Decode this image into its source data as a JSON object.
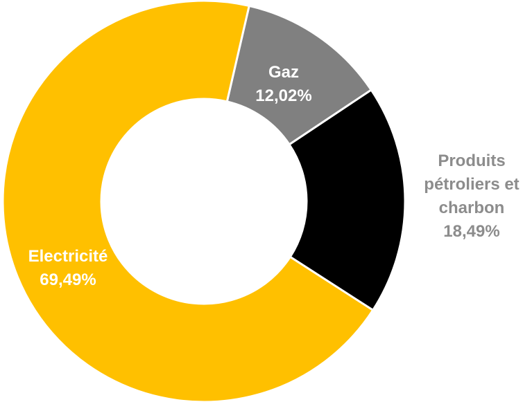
{
  "chart_data": {
    "type": "pie",
    "donut": true,
    "title": "",
    "categories": [
      "Gaz",
      "Produits pétroliers et charbon",
      "Electricité"
    ],
    "values": [
      12.02,
      18.49,
      69.49
    ],
    "value_labels": [
      "12,02%",
      "18,49%",
      "69,49%"
    ],
    "colors": [
      "#808080",
      "#000000",
      "#ffc000"
    ],
    "label_lines": [
      [
        "Gaz",
        "12,02%"
      ],
      [
        "Produits",
        "pétroliers et",
        "charbon",
        "18,49%"
      ],
      [
        "Electricité",
        "69,49%"
      ]
    ],
    "label_placement": [
      "inside",
      "outside",
      "inside"
    ],
    "start_angle_deg": 13,
    "direction": "clockwise",
    "legend": "none"
  }
}
